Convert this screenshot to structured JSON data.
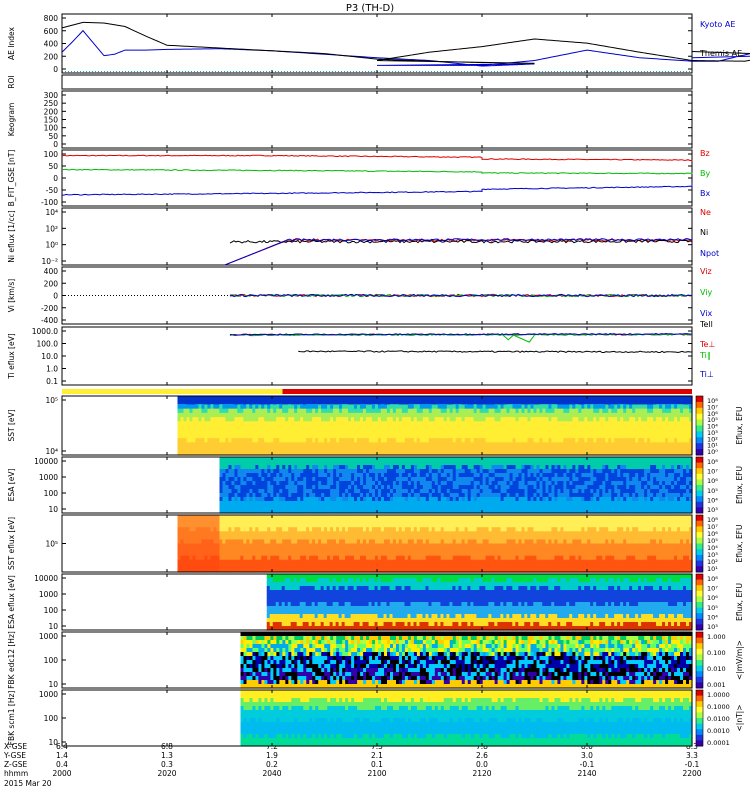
{
  "title": "P3 (TH-D)",
  "date": "2015 Mar 20",
  "colors": {
    "blue": "#0000cc",
    "red": "#dd0000",
    "green": "#00bb00",
    "black": "#000000",
    "yellow_bar": "#ffee33",
    "red_bar": "#dd0000"
  },
  "chart_data": [
    {
      "type": "line",
      "panel": "ae",
      "ylabel": "AE Index",
      "yticks": [
        "800",
        "600",
        "400",
        "200",
        "0"
      ],
      "ylim": [
        -50,
        800
      ],
      "series": [
        {
          "name": "Kyoto AE",
          "color": "#0000cc",
          "x": [
            2000,
            2002,
            2004,
            2006,
            2008,
            2010,
            2012,
            2016,
            2020,
            2030,
            2040,
            2050,
            2060,
            2070,
            2080,
            2090,
            2100,
            2110,
            2120,
            2130,
            2140,
            2150,
            2160,
            2165,
            2170,
            2180,
            2190,
            2200
          ],
          "values": [
            250,
            400,
            560,
            380,
            200,
            220,
            280,
            280,
            290,
            300,
            270,
            220,
            170,
            130,
            50,
            80,
            60,
            60,
            60,
            130,
            280,
            170,
            120,
            120,
            210,
            380,
            230,
            170
          ]
        },
        {
          "name": "Themis AE",
          "color": "#000000",
          "x": [
            2000,
            2004,
            2008,
            2012,
            2016,
            2020,
            2030,
            2040,
            2050,
            2060,
            2070,
            2080,
            2090,
            2100,
            2110,
            2120,
            2130,
            2140,
            2150,
            2160,
            2170,
            2180,
            2190,
            2200
          ],
          "values": [
            600,
            680,
            670,
            620,
            480,
            350,
            310,
            270,
            230,
            150,
            120,
            100,
            90,
            130,
            250,
            330,
            440,
            380,
            250,
            130,
            120,
            250,
            180,
            260
          ]
        }
      ]
    },
    {
      "type": "table",
      "panel": "roi",
      "ylabel": "ROI",
      "yticks": []
    },
    {
      "type": "table",
      "panel": "keogram",
      "ylabel": "Keogram",
      "yticks": [
        "300",
        "250",
        "200",
        "150",
        "100",
        "50",
        "0"
      ],
      "ylim": [
        0,
        300
      ]
    },
    {
      "type": "line",
      "panel": "bfield",
      "ylabel": "B_FIT_GSE [nT]",
      "yticks": [
        "100",
        "50",
        "0",
        "-50",
        "-100"
      ],
      "ylim": [
        -100,
        100
      ],
      "series": [
        {
          "name": "Bz",
          "color": "#dd0000",
          "x": [
            2000,
            2040,
            2080,
            2120,
            2160,
            2200
          ],
          "values": [
            80,
            80,
            74,
            68,
            64,
            60
          ]
        },
        {
          "name": "By",
          "color": "#00bb00",
          "x": [
            2000,
            2040,
            2080,
            2120,
            2160,
            2200
          ],
          "values": [
            30,
            27,
            22,
            18,
            16,
            15
          ]
        },
        {
          "name": "Bx",
          "color": "#0000cc",
          "x": [
            2000,
            2040,
            2080,
            2120,
            2160,
            2200
          ],
          "values": [
            -60,
            -55,
            -48,
            -40,
            -30,
            -18
          ]
        }
      ]
    },
    {
      "type": "line",
      "panel": "density",
      "ylabel": "Ni eflux [1/cc]",
      "yticks": [
        "10⁴",
        "10²",
        "10⁰",
        "10⁻²"
      ],
      "ylim": [
        -3,
        4
      ],
      "series": [
        {
          "name": "Ne",
          "color": "#dd0000",
          "x": [
            2031,
            2043,
            2200
          ],
          "values": [
            -3,
            0.05,
            0.05
          ]
        },
        {
          "name": "Ni",
          "color": "#000000",
          "x": [
            2032,
            2200
          ],
          "values": [
            -0.15,
            -0.1
          ]
        },
        {
          "name": "Npot",
          "color": "#0000cc",
          "x": [
            2031,
            2043,
            2200
          ],
          "values": [
            -3,
            0.1,
            0.12
          ]
        }
      ]
    },
    {
      "type": "line",
      "panel": "velocity",
      "ylabel": "Vi [km/s]",
      "yticks": [
        "400",
        "200",
        "0",
        "-200",
        "-400"
      ],
      "ylim": [
        -500,
        500
      ],
      "series": [
        {
          "name": "Viz",
          "color": "#dd0000",
          "x": [
            2032,
            2200
          ],
          "values": [
            0,
            0
          ]
        },
        {
          "name": "Viy",
          "color": "#00bb00",
          "x": [
            2032,
            2200
          ],
          "values": [
            0,
            0
          ]
        },
        {
          "name": "Vix",
          "color": "#0000cc",
          "x": [
            2032,
            2200
          ],
          "values": [
            0,
            0
          ]
        }
      ]
    },
    {
      "type": "line",
      "panel": "temperature",
      "ylabel": "Ti eflux [eV]",
      "yticks": [
        "1000.0",
        "100.0",
        "10.0",
        "1.0",
        "0.1"
      ],
      "ylim": [
        -1.3,
        3.7
      ],
      "series": [
        {
          "name": "Tell",
          "color": "#000000",
          "x": [
            2045,
            2200
          ],
          "values": [
            1.6,
            1.55
          ]
        },
        {
          "name": "Te⊥",
          "color": "#dd0000",
          "x": [
            2032,
            2200
          ],
          "values": [
            3.05,
            3.05
          ]
        },
        {
          "name": "Ti∥",
          "color": "#00bb00",
          "x": [
            2032,
            2200
          ],
          "values": [
            3.0,
            3.05
          ]
        },
        {
          "name": "Ti⊥",
          "color": "#0000cc",
          "x": [
            2032,
            2200
          ],
          "values": [
            3.05,
            3.1
          ]
        }
      ]
    },
    {
      "type": "heatmap",
      "panel": "sst_ion",
      "ylabel": "SST [eV]",
      "yticks": [
        "10⁵",
        "10⁴"
      ],
      "cbar_label": "Eflux, EFU",
      "cbar_ticks": [
        "10⁸",
        "10⁷",
        "10⁶",
        "10⁵",
        "10⁴",
        "10³",
        "10²",
        "10¹",
        "10⁰"
      ]
    },
    {
      "type": "heatmap",
      "panel": "esa_ion",
      "ylabel": "ESA [eV]",
      "yticks": [
        "10000",
        "1000",
        "100",
        "10"
      ],
      "cbar_label": "Eflux, EFU",
      "cbar_ticks": [
        "10⁸",
        "10⁷",
        "10⁶",
        "10⁵",
        "10⁴",
        "10³"
      ]
    },
    {
      "type": "heatmap",
      "panel": "sst_elec",
      "ylabel": "SST eflux [eV]",
      "yticks": [
        "10⁵"
      ],
      "cbar_label": "Eflux, EFU",
      "cbar_ticks": [
        "10⁸",
        "10⁷",
        "10⁶",
        "10⁵",
        "10⁴",
        "10³",
        "10²",
        "10¹"
      ]
    },
    {
      "type": "heatmap",
      "panel": "esa_elec",
      "ylabel": "ESA eflux [eV]",
      "yticks": [
        "10000",
        "1000",
        "100",
        "10"
      ],
      "cbar_label": "Eflux, EFU",
      "cbar_ticks": [
        "10⁸",
        "10⁷",
        "10⁶",
        "10⁵",
        "10⁴",
        "10³"
      ]
    },
    {
      "type": "heatmap",
      "panel": "fbk_e",
      "ylabel": "FBK edc12 [Hz]",
      "yticks": [
        "1000",
        "100",
        "10"
      ],
      "cbar_label": "<|mV/m|>",
      "cbar_ticks": [
        "1.000",
        "0.100",
        "0.010",
        "0.001"
      ]
    },
    {
      "type": "heatmap",
      "panel": "fbk_b",
      "ylabel": "FBK scm1 [Hz]",
      "yticks": [
        "1000",
        "100",
        "10"
      ],
      "cbar_label": "<|nT|>",
      "cbar_ticks": [
        "1.0000",
        "0.1000",
        "0.0100",
        "0.0010",
        "0.0001"
      ]
    }
  ],
  "xaxis": {
    "row_labels": [
      "X-GSE",
      "Y-GSE",
      "Z-GSE",
      "hhmm"
    ],
    "columns": [
      {
        "x": "6.4",
        "y": "1.4",
        "z": "0.4",
        "t": "2000"
      },
      {
        "x": "6.8",
        "y": "1.3",
        "z": "0.3",
        "t": "2020"
      },
      {
        "x": "7.2",
        "y": "1.9",
        "z": "0.2",
        "t": "2040"
      },
      {
        "x": "7.5",
        "y": "2.1",
        "z": "0.1",
        "t": "2100"
      },
      {
        "x": "7.8",
        "y": "2.6",
        "z": "0.0",
        "t": "2120"
      },
      {
        "x": "8.0",
        "y": "3.0",
        "z": "-0.1",
        "t": "2140"
      },
      {
        "x": "8.3",
        "y": "3.3",
        "z": "-0.1",
        "t": "2200"
      }
    ]
  }
}
